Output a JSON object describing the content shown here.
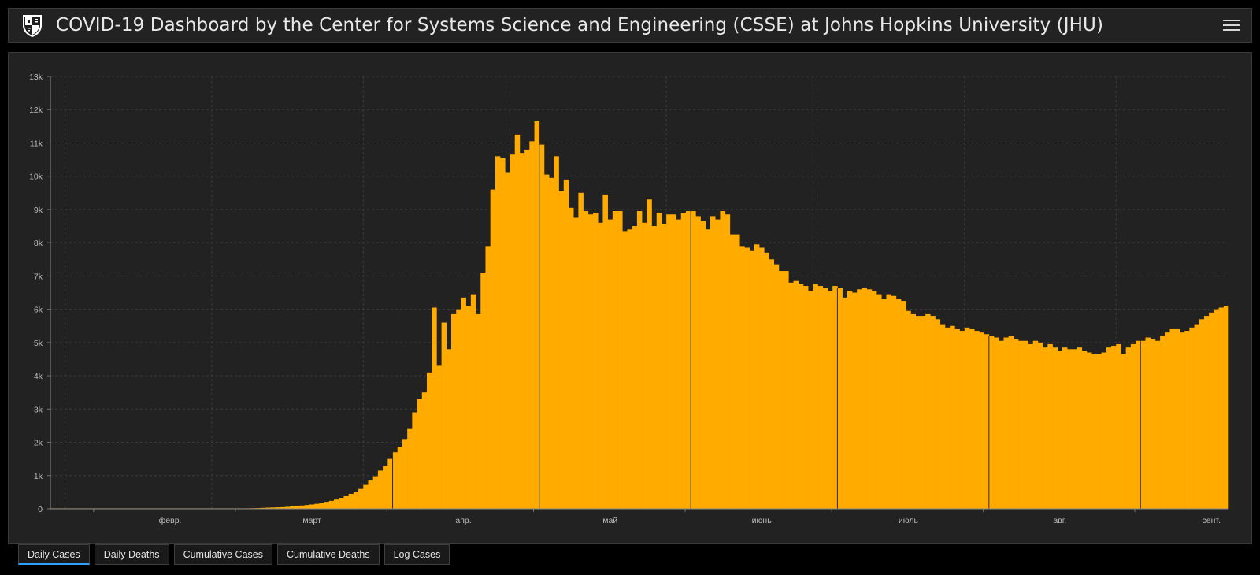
{
  "header": {
    "title": "COVID-19 Dashboard by the Center for Systems Science and Engineering (CSSE) at Johns Hopkins University (JHU)"
  },
  "tabs": [
    {
      "label": "Daily Cases",
      "active": true
    },
    {
      "label": "Daily Deaths",
      "active": false
    },
    {
      "label": "Cumulative Cases",
      "active": false
    },
    {
      "label": "Cumulative Deaths",
      "active": false
    },
    {
      "label": "Log Cases",
      "active": false
    }
  ],
  "colors": {
    "bar": "#ffab00",
    "background": "#222222",
    "active_tab_underline": "#2ea1ff"
  },
  "icons": {
    "logo": "jhu-shield-logo-icon",
    "menu": "hamburger-menu-icon"
  },
  "chart_data": {
    "type": "bar",
    "title": "",
    "xlabel": "",
    "ylabel": "",
    "ylim": [
      0,
      13000
    ],
    "grid": true,
    "y_tick_labels": [
      "0",
      "1k",
      "2k",
      "3k",
      "4k",
      "5k",
      "6k",
      "7k",
      "8k",
      "9k",
      "10k",
      "11k",
      "12k",
      "13k"
    ],
    "x_start_date": "2020-01-22",
    "x_month_labels": [
      {
        "label": "февр.",
        "date": "2020-02-01"
      },
      {
        "label": "март",
        "date": "2020-03-01"
      },
      {
        "label": "апр.",
        "date": "2020-04-01"
      },
      {
        "label": "май",
        "date": "2020-05-01"
      },
      {
        "label": "июнь",
        "date": "2020-06-01"
      },
      {
        "label": "июль",
        "date": "2020-07-01"
      },
      {
        "label": "авг.",
        "date": "2020-08-01"
      },
      {
        "label": "сент.",
        "date": "2020-09-01"
      }
    ],
    "series": [
      {
        "values": [
          0,
          0,
          0,
          0,
          0,
          0,
          0,
          0,
          0,
          0,
          0,
          0,
          0,
          0,
          0,
          0,
          0,
          0,
          0,
          0,
          0,
          0,
          0,
          0,
          0,
          0,
          0,
          0,
          0,
          0,
          0,
          0,
          0,
          0,
          0,
          0,
          0,
          0,
          0,
          0,
          0,
          0,
          0,
          0,
          0,
          0,
          0,
          0,
          0,
          0,
          0,
          0,
          0,
          0,
          0,
          0,
          0,
          0,
          0,
          0,
          0,
          0,
          0,
          0,
          0,
          0,
          0,
          0,
          0,
          0,
          0,
          0,
          0,
          0,
          0,
          0,
          0,
          0,
          0,
          0,
          0,
          0,
          0,
          0,
          0,
          0,
          0,
          0,
          0,
          0,
          0,
          0,
          0,
          0,
          0,
          0,
          0,
          0,
          0,
          0,
          0,
          0,
          0,
          0,
          0,
          0,
          0,
          0,
          0,
          0,
          0,
          0,
          0,
          0,
          0,
          0,
          0,
          0,
          0,
          0,
          0,
          0,
          0,
          0,
          0,
          0,
          0,
          0,
          0,
          0,
          0,
          0,
          0,
          0,
          0,
          0,
          0,
          0,
          0,
          0,
          0,
          0,
          0,
          0,
          0,
          0,
          0,
          0,
          0,
          0,
          0,
          0,
          0,
          0,
          0,
          0,
          0,
          0,
          0,
          0,
          0,
          0,
          0,
          0,
          0,
          0,
          0,
          0,
          0,
          0,
          0,
          0,
          0,
          0,
          0,
          0,
          0,
          0,
          0,
          0,
          0,
          0,
          0,
          0,
          0,
          0,
          0,
          0,
          0,
          0,
          0,
          0,
          0,
          0,
          0,
          0,
          0,
          0,
          0,
          0,
          0,
          0,
          0,
          0,
          0,
          0,
          0,
          0,
          0,
          0,
          0,
          0,
          0,
          0,
          0,
          0,
          0,
          0,
          0,
          0,
          0,
          0,
          0,
          0,
          0,
          0,
          0,
          0,
          0,
          0,
          0,
          0,
          0,
          0,
          0,
          0,
          0,
          0,
          0,
          0,
          0,
          0,
          0,
          0,
          0,
          0,
          0,
          0,
          0,
          0,
          0,
          0,
          0,
          0,
          0,
          0,
          0,
          0,
          0,
          0,
          0,
          0,
          0,
          0,
          0,
          0,
          0,
          0,
          0,
          0
        ]
      }
    ]
  }
}
